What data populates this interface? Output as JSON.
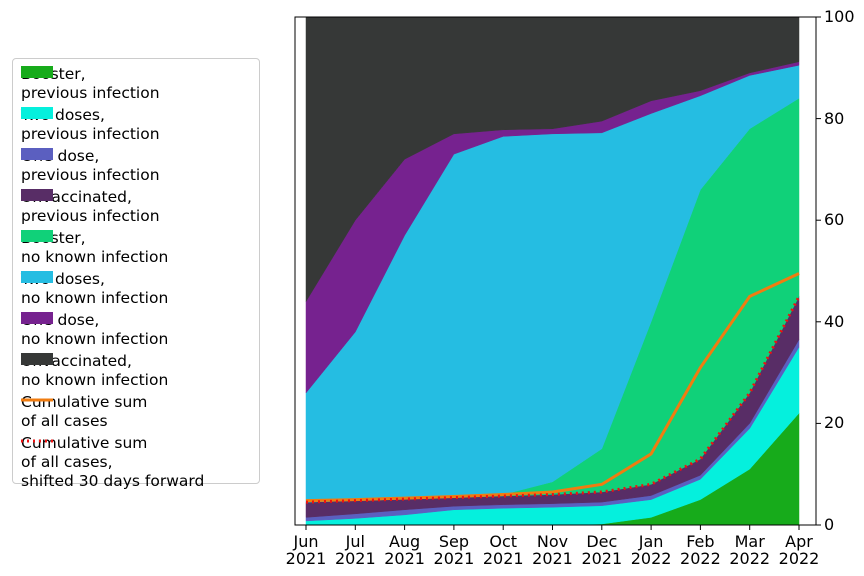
{
  "chart_data": {
    "type": "stacked_area",
    "x": [
      "2021-06",
      "2021-07",
      "2021-08",
      "2021-09",
      "2021-10",
      "2021-11",
      "2021-12",
      "2022-01",
      "2022-02",
      "2022-03",
      "2022-04"
    ],
    "xlim": [
      "2021-06",
      "2022-04"
    ],
    "xticks": [
      {
        "value": "2021-06",
        "label": "Jun\n2021"
      },
      {
        "value": "2021-07",
        "label": "Jul\n2021"
      },
      {
        "value": "2021-08",
        "label": "Aug\n2021"
      },
      {
        "value": "2021-09",
        "label": "Sep\n2021"
      },
      {
        "value": "2021-10",
        "label": "Oct\n2021"
      },
      {
        "value": "2021-11",
        "label": "Nov\n2021"
      },
      {
        "value": "2021-12",
        "label": "Dec\n2021"
      },
      {
        "value": "2022-01",
        "label": "Jan\n2022"
      },
      {
        "value": "2022-02",
        "label": "Feb\n2022"
      },
      {
        "value": "2022-03",
        "label": "Mar\n2022"
      },
      {
        "value": "2022-04",
        "label": "Apr\n2022"
      }
    ],
    "ylim": [
      0,
      100
    ],
    "yticks": [
      0,
      20,
      40,
      60,
      80,
      100
    ],
    "y_axis_side": "right",
    "grid": false,
    "legend": "left",
    "series": [
      {
        "name": "Booster,\nprevious infection",
        "color": "#17ab1b",
        "values": [
          0,
          0,
          0,
          0,
          0,
          0,
          0.2,
          1.5,
          5,
          11,
          22
        ]
      },
      {
        "name": "Two doses,\nprevious infection",
        "color": "#05f0dd",
        "values": [
          0.8,
          1.3,
          2,
          3,
          3.3,
          3.5,
          3.6,
          3.5,
          4,
          8,
          13
        ]
      },
      {
        "name": "One dose,\nprevious infection",
        "color": "#5b5fc0",
        "values": [
          0.7,
          0.9,
          1,
          0.7,
          0.7,
          0.7,
          0.7,
          0.8,
          0.8,
          1,
          1.5
        ]
      },
      {
        "name": "Unvaccinated,\nprevious infection",
        "color": "#582d66",
        "values": [
          3,
          2.6,
          2.1,
          1.7,
          1.7,
          1.8,
          2,
          2.2,
          3.2,
          6,
          8.5
        ]
      },
      {
        "name": "Booster,\nno known infection",
        "color": "#10d179",
        "values": [
          0,
          0,
          0,
          0,
          0.3,
          2.5,
          8.5,
          32,
          53,
          52,
          39
        ]
      },
      {
        "name": "Two doses,\nno known infection",
        "color": "#25bde2",
        "values": [
          21.5,
          33.2,
          51.9,
          67.6,
          70.5,
          68.5,
          62.2,
          41,
          18.5,
          10.5,
          6.5
        ]
      },
      {
        "name": "One dose,\nno known infection",
        "color": "#76228f",
        "values": [
          18,
          22,
          15,
          4,
          1.3,
          1,
          2.3,
          2.5,
          1,
          0.5,
          0.7
        ]
      },
      {
        "name": "Unvaccinated,\nno known infection",
        "color": "#363837",
        "values": [
          56,
          40,
          28,
          23,
          22.2,
          22,
          20.5,
          16.5,
          14.5,
          11,
          8.8
        ]
      }
    ],
    "lines": [
      {
        "name": "Cumulative sum\nof all cases",
        "color": "#f07c10",
        "style": "solid",
        "values": [
          4.8,
          5,
          5.3,
          5.6,
          6,
          6.5,
          8,
          14,
          31,
          45,
          49.5
        ]
      },
      {
        "name": "Cumulative sum\nof all cases,\nshifted 30 days forward",
        "color": "#ee1111",
        "style": "dotted",
        "values": [
          4.5,
          4.8,
          5.1,
          5.4,
          5.7,
          6,
          6.5,
          8,
          13,
          26,
          45
        ]
      }
    ]
  }
}
